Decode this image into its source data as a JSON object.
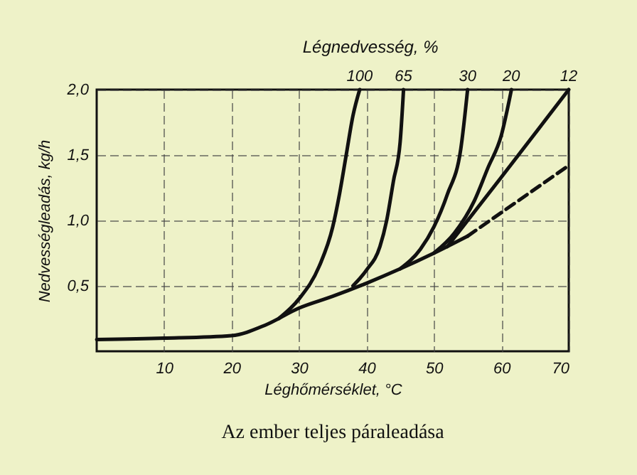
{
  "chart_data": {
    "type": "line",
    "title": "Az ember teljes páraleadása",
    "xlabel": "Léghőmérséklet,    °C",
    "ylabel": "Nedvességleadás,  kg/h",
    "legend_title": "Légnedvesség,   %",
    "xlim": [
      0,
      70
    ],
    "ylim": [
      0,
      2
    ],
    "xticks": [
      10,
      20,
      30,
      40,
      50,
      60,
      70
    ],
    "yticks": [
      {
        "value": 0.5,
        "label": "0,5"
      },
      {
        "value": 1.0,
        "label": "1,0"
      },
      {
        "value": 1.5,
        "label": "1,5"
      },
      {
        "value": 2.0,
        "label": "2,0"
      }
    ],
    "grid": true,
    "line_style": "solid",
    "series": [
      {
        "color": "#111111",
        "x": [
          0,
          10,
          20,
          25,
          30,
          35,
          40,
          45,
          50,
          55
        ],
        "values": [
          0.09,
          0.1,
          0.12,
          0.2,
          0.33,
          0.42,
          0.52,
          0.63,
          0.75,
          0.88
        ]
      },
      {
        "color": "#111111",
        "line_style": "dashed",
        "x": [
          55,
          70
        ],
        "values": [
          0.88,
          1.42
        ]
      },
      {
        "name": "100",
        "color": "#111111",
        "x": [
          27,
          30,
          33,
          35,
          36,
          37,
          38,
          39
        ],
        "values": [
          0.25,
          0.4,
          0.65,
          0.95,
          1.2,
          1.5,
          1.8,
          2.0
        ]
      },
      {
        "name": "65",
        "color": "#111111",
        "x": [
          38,
          40,
          42,
          43,
          44,
          45,
          45.5
        ],
        "values": [
          0.5,
          0.62,
          0.8,
          1.0,
          1.3,
          1.6,
          2.0
        ]
      },
      {
        "name": "30",
        "color": "#111111",
        "x": [
          45,
          48,
          50,
          52,
          54,
          55
        ],
        "values": [
          0.63,
          0.78,
          0.95,
          1.2,
          1.55,
          2.0
        ]
      },
      {
        "name": "20",
        "color": "#111111",
        "x": [
          50,
          53,
          56,
          58,
          60,
          61.5
        ],
        "values": [
          0.75,
          0.9,
          1.15,
          1.4,
          1.65,
          2.0
        ]
      },
      {
        "name": "12",
        "color": "#111111",
        "x": [
          52,
          60,
          70
        ],
        "values": [
          0.8,
          1.33,
          2.0
        ]
      }
    ]
  }
}
